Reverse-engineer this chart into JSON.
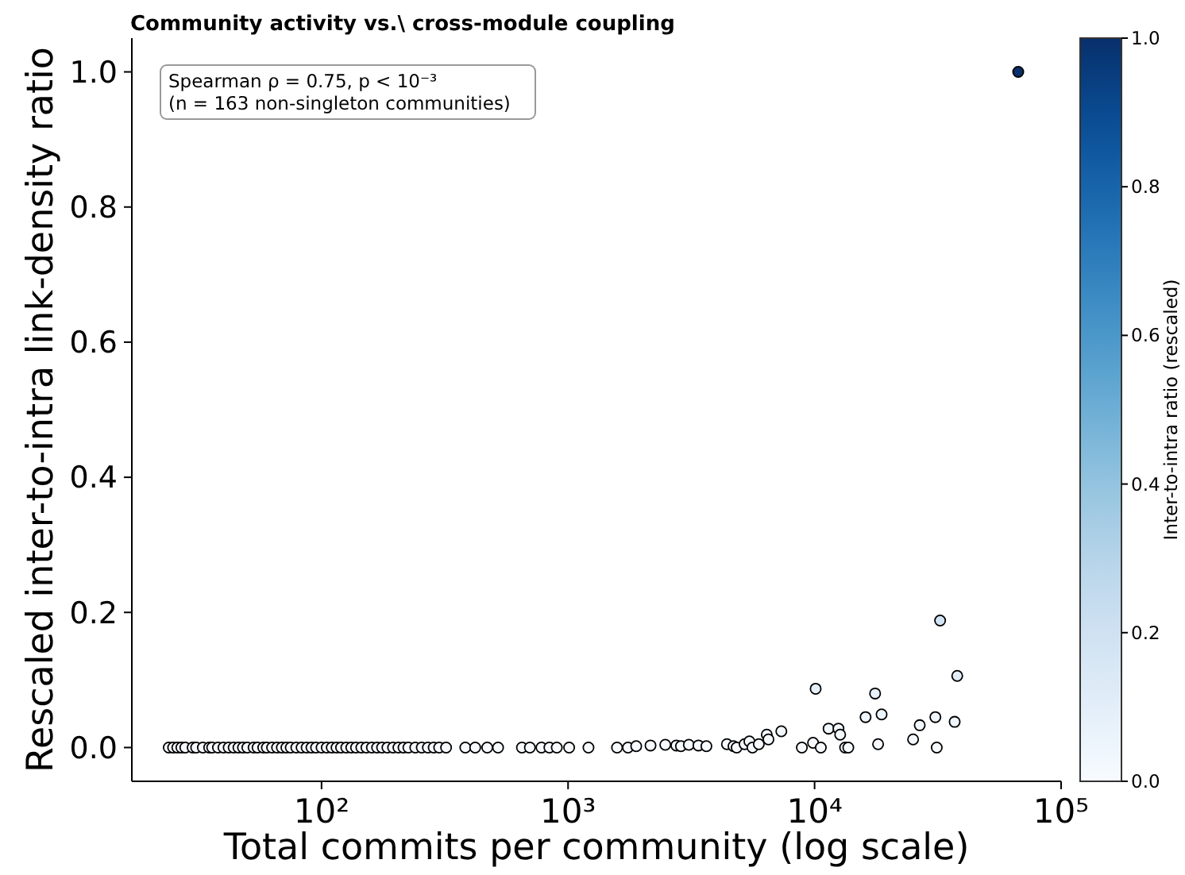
{
  "chart_data": {
    "type": "scatter",
    "title": "Community activity vs.\\ cross-module coupling",
    "xlabel": "Total commits per community (log scale)",
    "ylabel": "Rescaled inter-to-intra link-density ratio",
    "clabel": "Inter-to-intra ratio (rescaled)",
    "annotations": [
      "Spearman ρ = 0.75, p < 10⁻³",
      "(n = 163 non-singleton communities)"
    ],
    "log": "x",
    "xlim": [
      17,
      100000
    ],
    "ylim": [
      -0.05,
      1.05
    ],
    "xticks": [
      {
        "value": 100,
        "label": "10²"
      },
      {
        "value": 1000,
        "label": "10³"
      },
      {
        "value": 10000,
        "label": "10⁴"
      },
      {
        "value": 100000,
        "label": "10⁵"
      }
    ],
    "yticks": [
      {
        "value": 0,
        "label": "0.0"
      },
      {
        "value": 0.2,
        "label": "0.2"
      },
      {
        "value": 0.4,
        "label": "0.4"
      },
      {
        "value": 0.6,
        "label": "0.6"
      },
      {
        "value": 0.8,
        "label": "0.8"
      },
      {
        "value": 1,
        "label": "1.0"
      }
    ],
    "clim": [
      0,
      1
    ],
    "cticks": [
      {
        "value": 0,
        "label": "0.0"
      },
      {
        "value": 0.2,
        "label": "0.2"
      },
      {
        "value": 0.4,
        "label": "0.4"
      },
      {
        "value": 0.6,
        "label": "0.6"
      },
      {
        "value": 0.8,
        "label": "0.8"
      },
      {
        "value": 1,
        "label": "1.0"
      }
    ],
    "marker": "circle",
    "grid": false,
    "x": [
      24,
      25,
      26,
      27,
      28,
      30,
      31,
      33,
      35,
      36,
      38,
      40,
      42,
      44,
      46,
      48,
      50,
      53,
      55,
      58,
      60,
      63,
      66,
      69,
      72,
      75,
      79,
      83,
      87,
      91,
      95,
      100,
      105,
      110,
      115,
      120,
      126,
      132,
      138,
      145,
      152,
      160,
      168,
      176,
      185,
      195,
      205,
      215,
      225,
      240,
      255,
      270,
      285,
      300,
      320,
      383,
      420,
      470,
      520,
      650,
      700,
      780,
      840,
      900,
      1010,
      1210,
      1580,
      1750,
      1890,
      2160,
      2480,
      2750,
      2870,
      3090,
      3380,
      3640,
      4410,
      4690,
      4830,
      5200,
      5440,
      5600,
      5940,
      6400,
      6500,
      7330,
      8880,
      9860,
      10600,
      10100,
      11400,
      12500,
      12700,
      13300,
      13700,
      16100,
      17600,
      18700,
      18100,
      25100,
      26700,
      30900,
      32300,
      31300,
      37000,
      37900,
      67000
    ],
    "values": [
      0,
      0,
      0,
      0,
      0,
      0,
      0,
      0,
      0,
      0,
      0,
      0,
      0,
      0,
      0,
      0,
      0,
      0,
      0,
      0,
      0,
      0,
      0,
      0,
      0,
      0,
      0,
      0,
      0,
      0,
      0,
      0,
      0,
      0,
      0,
      0,
      0,
      0,
      0,
      0,
      0,
      0,
      0,
      0,
      0,
      0,
      0,
      0,
      0,
      0,
      0,
      0,
      0,
      0,
      0,
      0,
      0,
      0,
      0,
      0,
      0,
      0,
      0,
      0,
      0,
      0,
      0,
      0,
      0.002,
      0.003,
      0.004,
      0.003,
      0.002,
      0.004,
      0.003,
      0.002,
      0.005,
      0.002,
      0,
      0.005,
      0.009,
      0,
      0.005,
      0.019,
      0.012,
      0.024,
      0,
      0.007,
      0,
      0.087,
      0.028,
      0.028,
      0.019,
      0,
      0,
      0.045,
      0.08,
      0.049,
      0.005,
      0.012,
      0.033,
      0.045,
      0.188,
      0,
      0.038,
      0.106,
      1.0
    ],
    "cvalues": [
      0,
      0,
      0,
      0,
      0,
      0,
      0,
      0,
      0,
      0,
      0,
      0,
      0,
      0,
      0,
      0,
      0,
      0,
      0,
      0,
      0,
      0,
      0,
      0,
      0,
      0,
      0,
      0,
      0,
      0,
      0,
      0,
      0,
      0,
      0,
      0,
      0,
      0,
      0,
      0,
      0,
      0,
      0,
      0,
      0,
      0,
      0,
      0,
      0,
      0,
      0,
      0,
      0,
      0,
      0,
      0,
      0,
      0,
      0,
      0,
      0,
      0,
      0,
      0,
      0,
      0,
      0,
      0,
      0.002,
      0.003,
      0.004,
      0.003,
      0.002,
      0.004,
      0.003,
      0.002,
      0.005,
      0.002,
      0,
      0.005,
      0.009,
      0,
      0.005,
      0.019,
      0.012,
      0.024,
      0,
      0.007,
      0,
      0.087,
      0.028,
      0.028,
      0.019,
      0,
      0,
      0.045,
      0.08,
      0.049,
      0.005,
      0.012,
      0.033,
      0.045,
      0.188,
      0,
      0.038,
      0.106,
      1.0
    ]
  }
}
